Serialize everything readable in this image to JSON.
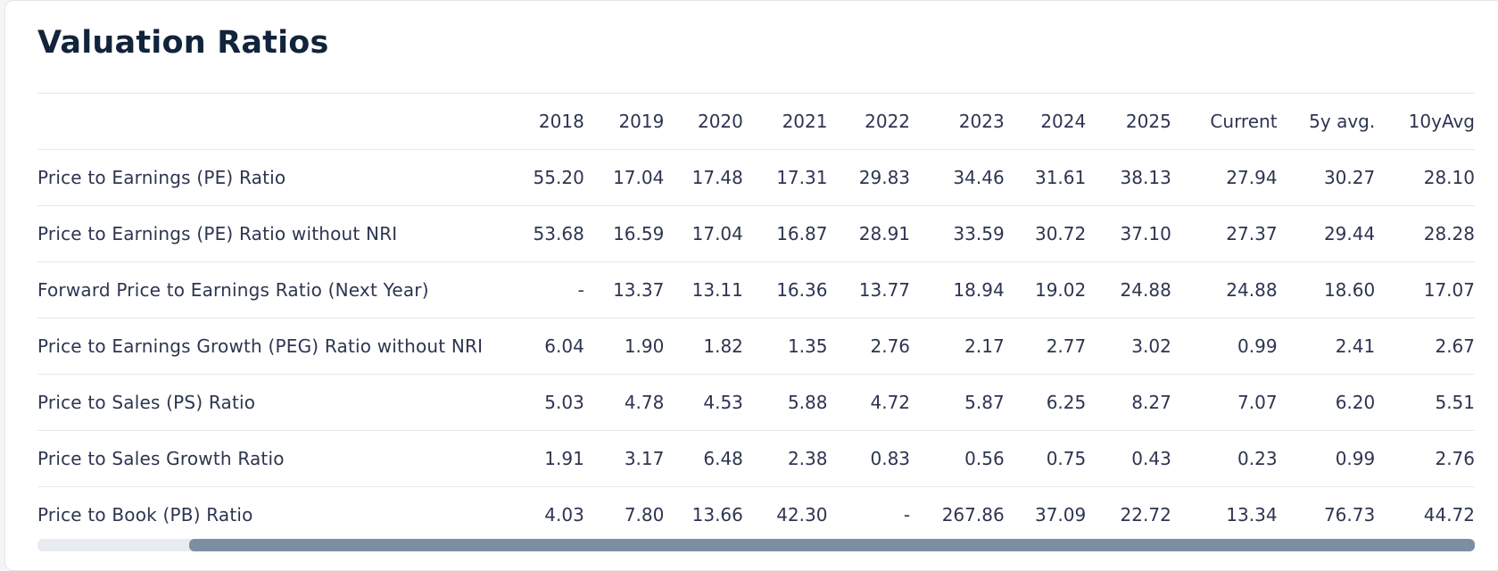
{
  "title": "Valuation Ratios",
  "table": {
    "columns": [
      "2018",
      "2019",
      "2020",
      "2021",
      "2022",
      "2023",
      "2024",
      "2025",
      "Current",
      "5y avg.",
      "10yAvg"
    ],
    "rows": [
      {
        "label": "Price to Earnings (PE) Ratio",
        "values": [
          "55.20",
          "17.04",
          "17.48",
          "17.31",
          "29.83",
          "34.46",
          "31.61",
          "38.13",
          "27.94",
          "30.27",
          "28.10"
        ]
      },
      {
        "label": "Price to Earnings (PE) Ratio without NRI",
        "values": [
          "53.68",
          "16.59",
          "17.04",
          "16.87",
          "28.91",
          "33.59",
          "30.72",
          "37.10",
          "27.37",
          "29.44",
          "28.28"
        ]
      },
      {
        "label": "Forward Price to Earnings Ratio (Next Year)",
        "values": [
          "-",
          "13.37",
          "13.11",
          "16.36",
          "13.77",
          "18.94",
          "19.02",
          "24.88",
          "24.88",
          "18.60",
          "17.07"
        ]
      },
      {
        "label": "Price to Earnings Growth (PEG) Ratio without NRI",
        "values": [
          "6.04",
          "1.90",
          "1.82",
          "1.35",
          "2.76",
          "2.17",
          "2.77",
          "3.02",
          "0.99",
          "2.41",
          "2.67"
        ]
      },
      {
        "label": "Price to Sales (PS) Ratio",
        "values": [
          "5.03",
          "4.78",
          "4.53",
          "5.88",
          "4.72",
          "5.87",
          "6.25",
          "8.27",
          "7.07",
          "6.20",
          "5.51"
        ]
      },
      {
        "label": "Price to Sales Growth Ratio",
        "values": [
          "1.91",
          "3.17",
          "6.48",
          "2.38",
          "0.83",
          "0.56",
          "0.75",
          "0.43",
          "0.23",
          "0.99",
          "2.76"
        ]
      },
      {
        "label": "Price to Book (PB) Ratio",
        "values": [
          "4.03",
          "7.80",
          "13.66",
          "42.30",
          "-",
          "267.86",
          "37.09",
          "22.72",
          "13.34",
          "76.73",
          "44.72"
        ]
      }
    ]
  },
  "colors": {
    "title": "#12243b",
    "text": "#2d3550",
    "divider": "#e6e9ee",
    "scroll_track": "#e8ebf0",
    "scroll_thumb": "#7c8fa2"
  }
}
